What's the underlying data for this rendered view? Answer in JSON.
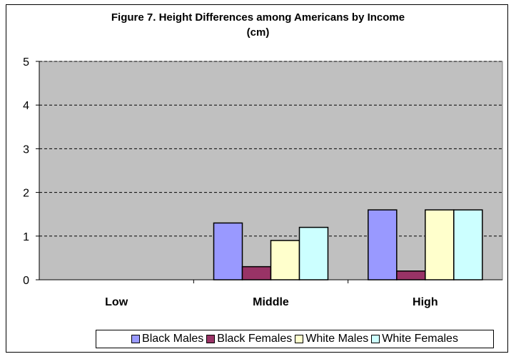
{
  "chart_data": {
    "type": "bar",
    "title_line1": "Figure 7. Height Differences among Americans by Income",
    "title_line2": "(cm)",
    "categories": [
      "Low",
      "Middle",
      "High"
    ],
    "series": [
      {
        "name": "Black Males",
        "color": "#9999FF",
        "values": [
          0,
          1.3,
          1.6
        ]
      },
      {
        "name": "Black Females",
        "color": "#993366",
        "values": [
          0,
          0.3,
          0.2
        ]
      },
      {
        "name": "White Males",
        "color": "#FFFFCC",
        "values": [
          0,
          0.9,
          1.6
        ]
      },
      {
        "name": "White Females",
        "color": "#CCFFFF",
        "values": [
          0,
          1.2,
          1.6
        ]
      }
    ],
    "ylim": [
      0,
      5
    ],
    "yticks": [
      "0",
      "1",
      "2",
      "3",
      "4",
      "5"
    ],
    "grid": true,
    "plot_background": "#C0C0C0",
    "legend_position": "bottom"
  }
}
